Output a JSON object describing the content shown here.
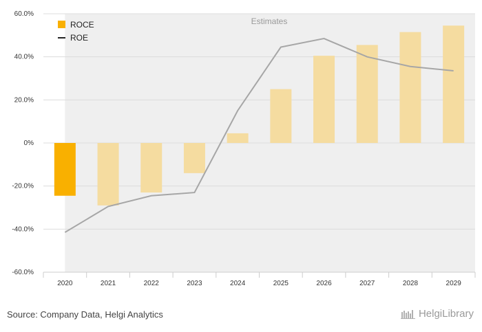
{
  "chart_data": {
    "type": "bar",
    "categories": [
      "2020",
      "2021",
      "2022",
      "2023",
      "2024",
      "2025",
      "2026",
      "2027",
      "2028",
      "2029"
    ],
    "series": [
      {
        "name": "ROCE",
        "type": "bar",
        "values": [
          -24.5,
          -29.0,
          -23.0,
          -14.0,
          4.5,
          25.0,
          40.5,
          45.5,
          51.5,
          54.5
        ]
      },
      {
        "name": "ROE",
        "type": "line",
        "values": [
          -41.5,
          -29.5,
          -24.5,
          -23.0,
          15.0,
          44.5,
          48.5,
          40.0,
          35.5,
          33.5
        ]
      }
    ],
    "estimates_label": "Estimates",
    "estimates_from": "2021",
    "ylim": [
      -60,
      60
    ],
    "yticks": [
      60,
      40,
      20,
      0,
      -20,
      -40,
      -60
    ],
    "ytick_labels": [
      "60.0%",
      "40.0%",
      "20.0%",
      "0%",
      "-20.0%",
      "-40.0%",
      "-60.0%"
    ],
    "legend": {
      "placement": "top-left"
    },
    "colors": {
      "actual_bar": "#f9b000",
      "estimate_bar": "#f5dca0",
      "line": "#a6a6a6",
      "plot_bg": "#efefef",
      "grid": "#dcdcdc"
    }
  },
  "footer": {
    "source": "Source: Company Data, Helgi Analytics",
    "brand": "HelgiLibrary"
  }
}
